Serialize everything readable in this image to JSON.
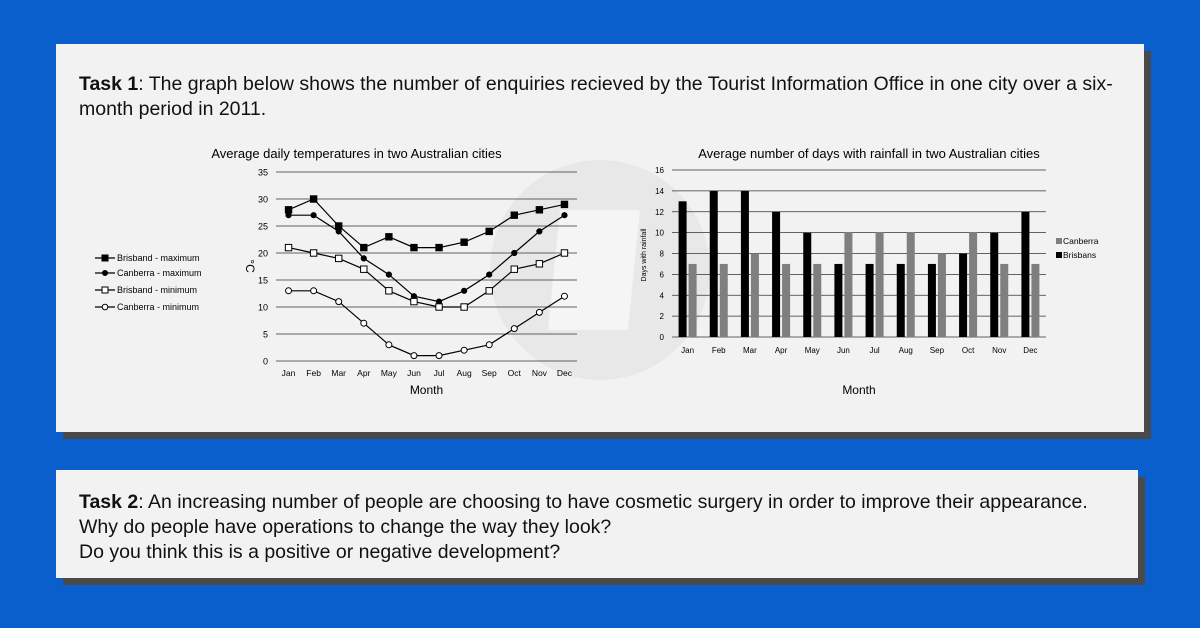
{
  "colors": {
    "background": "#0a5fcc",
    "card": "#f2f2f2",
    "shadow": "#4a4a4a",
    "canberra_bar": "#7f7f7f",
    "brisbane_bar": "#000000",
    "watermark": "#e0e0e0"
  },
  "task1": {
    "label": "Task 1",
    "text": ": The graph below shows the number of enquiries recieved by the Tourist Information Office in one city over a six-month period in 2011."
  },
  "task2": {
    "label": "Task 2",
    "text": ": An increasing number of people are choosing to have cosmetic surgery in order to improve their appearance. Why do people have operations to change the way they look?",
    "text2": "Do you think this is a positive or negative development?"
  },
  "chart_data": [
    {
      "type": "line",
      "title": "Average daily temperatures in two Australian cities",
      "xlabel": "Month",
      "ylabel": "°C",
      "ylim": [
        0,
        35
      ],
      "yticks": [
        0,
        5,
        10,
        15,
        20,
        25,
        30,
        35
      ],
      "grid": true,
      "legend_position": "left",
      "categories": [
        "Jan",
        "Feb",
        "Mar",
        "Apr",
        "May",
        "Jun",
        "Jul",
        "Aug",
        "Sep",
        "Oct",
        "Nov",
        "Dec"
      ],
      "series": [
        {
          "name": "Brisband - maximum",
          "marker": "filled-square",
          "values": [
            28,
            30,
            25,
            21,
            23,
            21,
            21,
            22,
            24,
            27,
            28,
            29
          ]
        },
        {
          "name": "Canberra - maximum",
          "marker": "filled-circle",
          "values": [
            27,
            27,
            24,
            19,
            16,
            12,
            11,
            13,
            16,
            20,
            24,
            27
          ]
        },
        {
          "name": "Brisband - minimum",
          "marker": "open-square",
          "values": [
            21,
            20,
            19,
            17,
            13,
            11,
            10,
            10,
            13,
            17,
            18,
            20
          ]
        },
        {
          "name": "Canberra - minimum",
          "marker": "open-circle",
          "values": [
            13,
            13,
            11,
            7,
            3,
            1,
            1,
            2,
            3,
            6,
            9,
            12
          ]
        }
      ]
    },
    {
      "type": "bar",
      "title": "Average number of days with rainfall in two Australian cities",
      "xlabel": "Month",
      "ylabel": "Days with rainfall",
      "ylim": [
        0,
        16
      ],
      "yticks": [
        0,
        2,
        4,
        6,
        8,
        10,
        12,
        14,
        16
      ],
      "grid": true,
      "legend_position": "right",
      "categories": [
        "Jan",
        "Feb",
        "Mar",
        "Apr",
        "May",
        "Jun",
        "Jul",
        "Aug",
        "Sep",
        "Oct",
        "Nov",
        "Dec"
      ],
      "series": [
        {
          "name": "Brisbans",
          "values": [
            13,
            14,
            14,
            12,
            10,
            7,
            7,
            7,
            7,
            8,
            10,
            12
          ]
        },
        {
          "name": "Canberra",
          "values": [
            7,
            7,
            8,
            7,
            7,
            10,
            10,
            10,
            8,
            10,
            7,
            7
          ]
        }
      ]
    }
  ]
}
